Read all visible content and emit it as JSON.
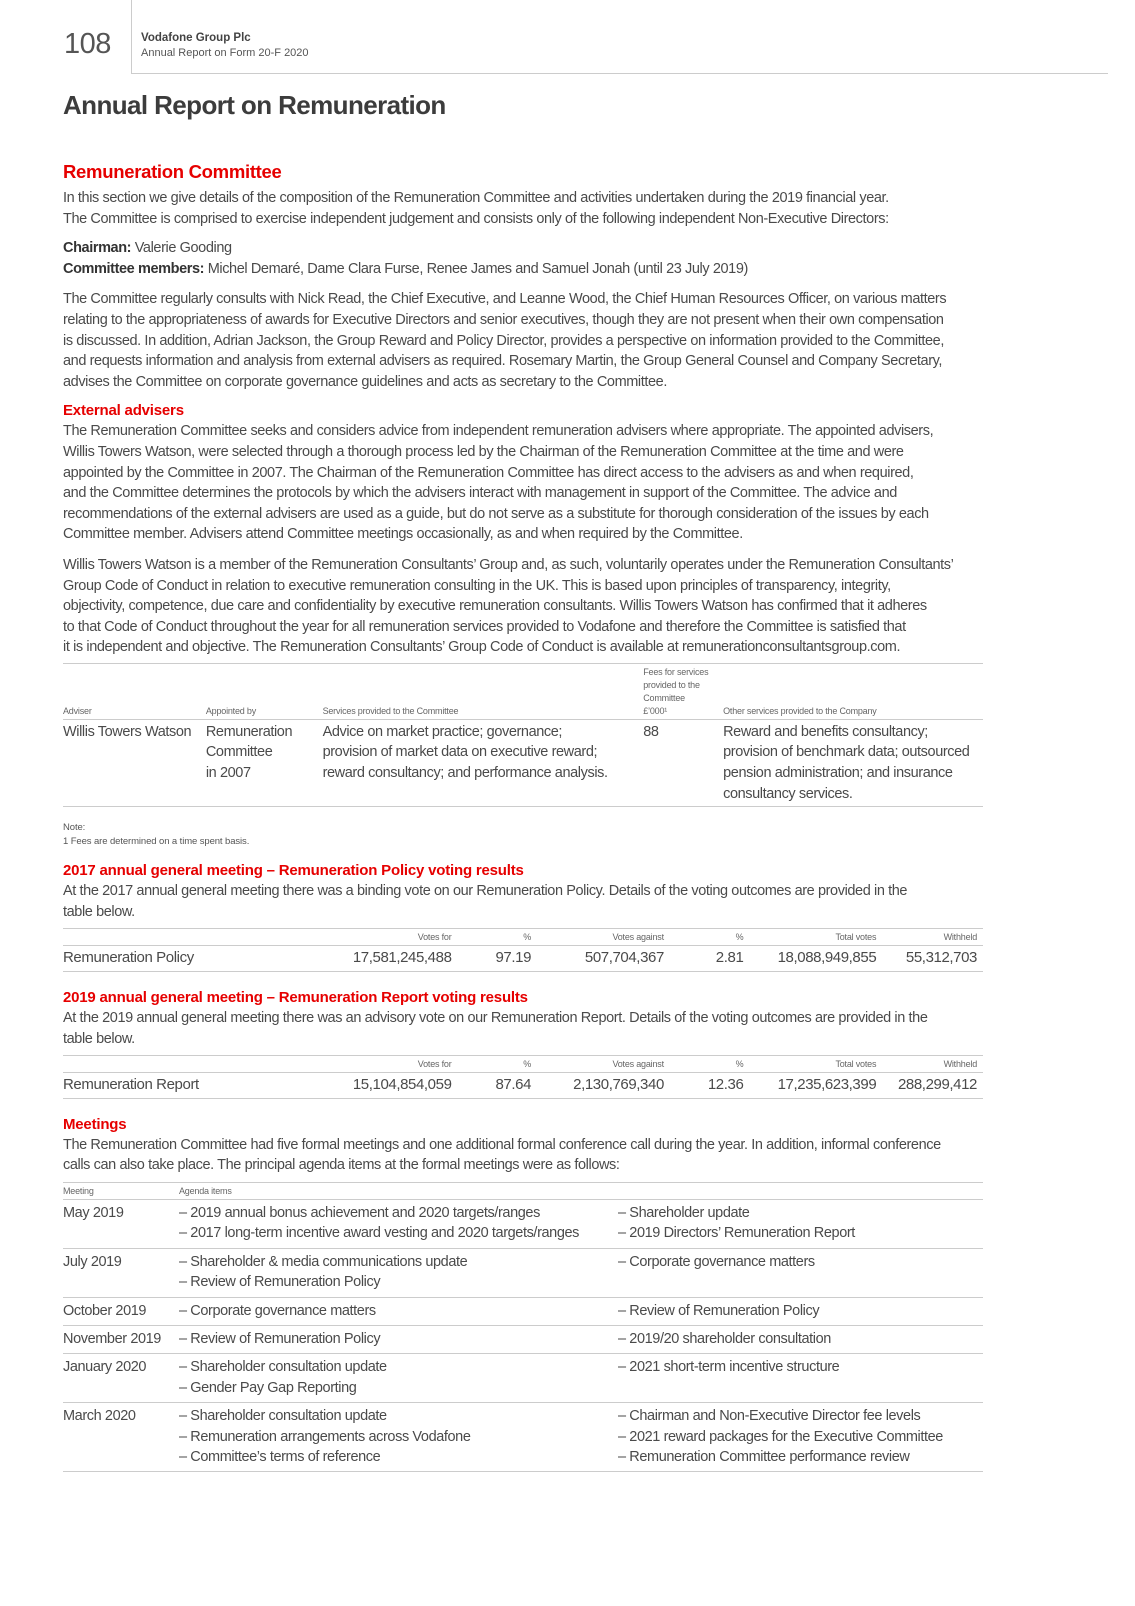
{
  "header": {
    "page_number": "108",
    "company": "Vodafone Group Plc",
    "subtitle": "Annual Report on Form 20-F 2020"
  },
  "title": "Annual Report on Remuneration",
  "committee": {
    "heading": "Remuneration Committee",
    "intro": [
      "In this section we give details of the composition of the Remuneration Committee and activities undertaken during the 2019 financial year.",
      "The Committee is comprised to exercise independent judgement and consists only of the following independent Non-Executive Directors:"
    ],
    "chairman_label": "Chairman:",
    "chairman": " Valerie Gooding",
    "members_label": "Committee members:",
    "members": " Michel Demaré, Dame Clara Furse, Renee James and Samuel Jonah (until 23 July 2019)",
    "consults": [
      "The Committee regularly consults with Nick Read, the Chief Executive, and Leanne Wood, the Chief Human Resources Officer, on various matters",
      "relating to the appropriateness of awards for Executive Directors and senior executives, though they are not present when their own compensation",
      "is discussed. In addition, Adrian Jackson, the Group Reward and Policy Director, provides a perspective on information provided to the Committee,",
      "and requests information and analysis from external advisers as required. Rosemary Martin, the Group General Counsel and Company Secretary,",
      "advises the Committee on corporate governance guidelines and acts as secretary to the Committee."
    ]
  },
  "advisers": {
    "heading": "External advisers",
    "p1": [
      "The Remuneration Committee seeks and considers advice from independent remuneration advisers where appropriate. The appointed advisers,",
      "Willis Towers Watson, were selected through a thorough process led by the Chairman of the Remuneration Committee at the time and were",
      "appointed by the Committee in 2007. The Chairman of the Remuneration Committee has direct access to the advisers as and when required,",
      "and the Committee determines the protocols by which the advisers interact with management in support of the Committee. The advice and",
      "recommendations of the external advisers are used as a guide, but do not serve as a substitute for thorough consideration of the issues by each",
      "Committee member. Advisers attend Committee meetings occasionally, as and when required by the Committee."
    ],
    "p2": [
      "Willis Towers Watson is a member of the Remuneration Consultants’ Group and, as such, voluntarily operates under the Remuneration Consultants’",
      "Group Code of Conduct in relation to executive remuneration consulting in the UK. This is based upon principles of transparency, integrity,",
      "objectivity, competence, due care and confidentiality by executive remuneration consultants. Willis Towers Watson has confirmed that it adheres",
      "to that Code of Conduct throughout the year for all remuneration services provided to Vodafone and therefore the Committee is satisfied that",
      "it is independent and objective. The Remuneration Consultants’ Group Code of Conduct is available at remunerationconsultantsgroup.com."
    ],
    "table": {
      "headers": [
        [
          "Adviser"
        ],
        [
          "Appointed by"
        ],
        [
          "Services provided to the Committee"
        ],
        [
          "Fees for services",
          "provided to the",
          "Committee",
          "£’000¹"
        ],
        [
          "Other services provided to the Company"
        ]
      ],
      "row": [
        [
          "Willis Towers Watson"
        ],
        [
          "Remuneration",
          "Committee",
          "in 2007"
        ],
        [
          "Advice on market practice; governance;",
          "provision of market data on executive reward;",
          "reward consultancy; and performance analysis."
        ],
        [
          "88"
        ],
        [
          "Reward and benefits consultancy;",
          "provision of benchmark data; outsourced",
          "pension administration; and insurance",
          "consultancy services."
        ]
      ]
    },
    "note_label": "Note:",
    "note": "1   Fees are determined on a time spent basis."
  },
  "agm2017": {
    "heading": "2017 annual general meeting – Remuneration Policy voting results",
    "text": [
      "At the 2017 annual general meeting there was a binding vote on our Remuneration Policy. Details of the voting outcomes are provided in the",
      "table below."
    ],
    "headers": [
      "",
      "Votes for",
      "%",
      "Votes against",
      "%",
      "Total votes",
      "Withheld"
    ],
    "row": [
      "Remuneration Policy",
      "17,581,245,488",
      "97.19",
      "507,704,367",
      "2.81",
      "18,088,949,855",
      "55,312,703"
    ]
  },
  "agm2019": {
    "heading": "2019 annual general meeting – Remuneration Report voting results",
    "text": [
      "At the 2019 annual general meeting there was an advisory vote on our Remuneration Report. Details of the voting outcomes are provided in the",
      "table below."
    ],
    "headers": [
      "",
      "Votes for",
      "%",
      "Votes against",
      "%",
      "Total votes",
      "Withheld"
    ],
    "row": [
      "Remuneration Report",
      "15,104,854,059",
      "87.64",
      "2,130,769,340",
      "12.36",
      "17,235,623,399",
      "288,299,412"
    ]
  },
  "meetings": {
    "heading": "Meetings",
    "text": [
      "The Remuneration Committee had five formal meetings and one additional formal conference call during the year. In addition, informal conference",
      "calls can also take place. The principal agenda items at the formal meetings were as follows:"
    ],
    "headers": [
      "Meeting",
      "Agenda items"
    ],
    "rows": [
      {
        "meeting": "May 2019",
        "col1": [
          "– 2019 annual bonus achievement and 2020 targets/ranges",
          "– 2017 long-term incentive award vesting and 2020 targets/ranges"
        ],
        "col2": [
          "– Shareholder update",
          "– 2019 Directors’ Remuneration Report"
        ]
      },
      {
        "meeting": "July 2019",
        "col1": [
          "– Shareholder & media communications update",
          "– Review of Remuneration Policy"
        ],
        "col2": [
          "– Corporate governance matters"
        ]
      },
      {
        "meeting": "October 2019",
        "col1": [
          "– Corporate governance matters"
        ],
        "col2": [
          "– Review of Remuneration Policy"
        ]
      },
      {
        "meeting": "November 2019",
        "col1": [
          "– Review of Remuneration Policy"
        ],
        "col2": [
          "– 2019/20 shareholder consultation"
        ]
      },
      {
        "meeting": "January 2020",
        "col1": [
          "– Shareholder consultation update",
          "– Gender Pay Gap Reporting"
        ],
        "col2": [
          "– 2021 short-term incentive structure"
        ]
      },
      {
        "meeting": "March 2020",
        "col1": [
          "– Shareholder consultation update",
          "– Remuneration arrangements across Vodafone",
          "– Committee’s terms of reference"
        ],
        "col2": [
          "– Chairman and Non-Executive Director fee levels",
          "– 2021 reward packages for the Executive Committee",
          "– Remuneration Committee performance review"
        ]
      }
    ]
  },
  "colors": {
    "accent": "#e60000",
    "text": "#4a4a4a",
    "rule": "#cccccc"
  }
}
